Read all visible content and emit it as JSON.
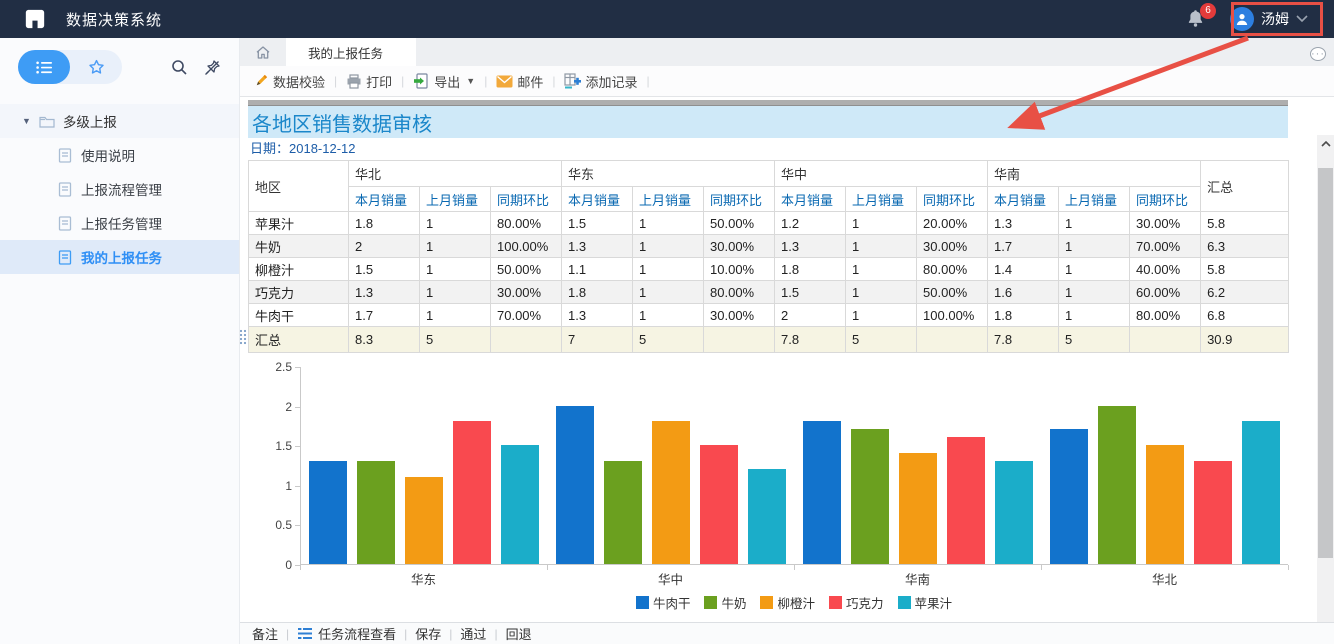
{
  "header": {
    "app_title": "数据决策系统",
    "bell_badge": "6",
    "user_name": "汤姆"
  },
  "sidebar": {
    "parent_label": "多级上报",
    "items": [
      {
        "label": "使用说明",
        "active": false
      },
      {
        "label": "上报流程管理",
        "active": false
      },
      {
        "label": "上报任务管理",
        "active": false
      },
      {
        "label": "我的上报任务",
        "active": true
      }
    ]
  },
  "tabs": {
    "active_label": "我的上报任务"
  },
  "toolbar": {
    "items": [
      {
        "label": "数据校验",
        "icon": "pencil-icon",
        "caret": false
      },
      {
        "label": "打印",
        "icon": "printer-icon",
        "caret": false
      },
      {
        "label": "导出",
        "icon": "export-icon",
        "caret": true
      },
      {
        "label": "邮件",
        "icon": "mail-icon",
        "caret": false
      },
      {
        "label": "添加记录",
        "icon": "add-record-icon",
        "caret": false
      }
    ]
  },
  "report": {
    "title": "各地区销售数据审核",
    "date_label": "日期：2018-12-12",
    "table": {
      "corner": "地区",
      "regions": [
        "华北",
        "华东",
        "华中",
        "华南"
      ],
      "subheaders": [
        "本月销量",
        "上月销量",
        "同期环比"
      ],
      "total_header": "汇总",
      "rows": [
        {
          "name": "苹果汁",
          "cells": [
            [
              "1.8",
              "1",
              "80.00%"
            ],
            [
              "1.5",
              "1",
              "50.00%"
            ],
            [
              "1.2",
              "1",
              "20.00%"
            ],
            [
              "1.3",
              "1",
              "30.00%"
            ]
          ],
          "total": "5.8"
        },
        {
          "name": "牛奶",
          "cells": [
            [
              "2",
              "1",
              "100.00%"
            ],
            [
              "1.3",
              "1",
              "30.00%"
            ],
            [
              "1.3",
              "1",
              "30.00%"
            ],
            [
              "1.7",
              "1",
              "70.00%"
            ]
          ],
          "total": "6.3"
        },
        {
          "name": "柳橙汁",
          "cells": [
            [
              "1.5",
              "1",
              "50.00%"
            ],
            [
              "1.1",
              "1",
              "10.00%"
            ],
            [
              "1.8",
              "1",
              "80.00%"
            ],
            [
              "1.4",
              "1",
              "40.00%"
            ]
          ],
          "total": "5.8"
        },
        {
          "name": "巧克力",
          "cells": [
            [
              "1.3",
              "1",
              "30.00%"
            ],
            [
              "1.8",
              "1",
              "80.00%"
            ],
            [
              "1.5",
              "1",
              "50.00%"
            ],
            [
              "1.6",
              "1",
              "60.00%"
            ]
          ],
          "total": "6.2"
        },
        {
          "name": "牛肉干",
          "cells": [
            [
              "1.7",
              "1",
              "70.00%"
            ],
            [
              "1.3",
              "1",
              "30.00%"
            ],
            [
              "2",
              "1",
              "100.00%"
            ],
            [
              "1.8",
              "1",
              "80.00%"
            ]
          ],
          "total": "6.8"
        }
      ],
      "total_row": {
        "name": "汇总",
        "cells": [
          [
            "8.3",
            "5",
            ""
          ],
          [
            "7",
            "5",
            ""
          ],
          [
            "7.8",
            "5",
            ""
          ],
          [
            "7.8",
            "5",
            ""
          ]
        ],
        "total": "30.9"
      }
    }
  },
  "chart_data": {
    "type": "bar",
    "categories": [
      "华东",
      "华中",
      "华南",
      "华北"
    ],
    "series": [
      {
        "name": "牛肉干",
        "color": "#1273cc",
        "values": [
          1.3,
          2.0,
          1.8,
          1.7
        ]
      },
      {
        "name": "牛奶",
        "color": "#6ba01f",
        "values": [
          1.3,
          1.3,
          1.7,
          2.0
        ]
      },
      {
        "name": "柳橙汁",
        "color": "#f39b14",
        "values": [
          1.1,
          1.8,
          1.4,
          1.5
        ]
      },
      {
        "name": "巧克力",
        "color": "#f9494f",
        "values": [
          1.8,
          1.5,
          1.6,
          1.3
        ]
      },
      {
        "name": "苹果汁",
        "color": "#1badc9",
        "values": [
          1.5,
          1.2,
          1.3,
          1.8
        ]
      }
    ],
    "title": "",
    "xlabel": "",
    "ylabel": "",
    "ylim": [
      0,
      2.5
    ],
    "yticks": [
      0,
      0.5,
      1,
      1.5,
      2,
      2.5
    ],
    "grid": false,
    "legend_position": "bottom"
  },
  "footer": {
    "items": [
      {
        "label": "备注",
        "icon": null
      },
      {
        "label": "任务流程查看",
        "icon": "flow-icon"
      },
      {
        "label": "保存",
        "icon": null
      },
      {
        "label": "通过",
        "icon": null
      },
      {
        "label": "回退",
        "icon": null
      }
    ]
  },
  "annotation": {
    "type": "red-box-and-arrow",
    "target": "user-menu",
    "color": "#e85045"
  },
  "theme": {
    "accent": "#3e9cf5",
    "header_bg": "#212e44",
    "title_band_bg": "#cfe9f8",
    "title_color": "#1b87ca",
    "total_row_bg": "#f6f4e3"
  }
}
